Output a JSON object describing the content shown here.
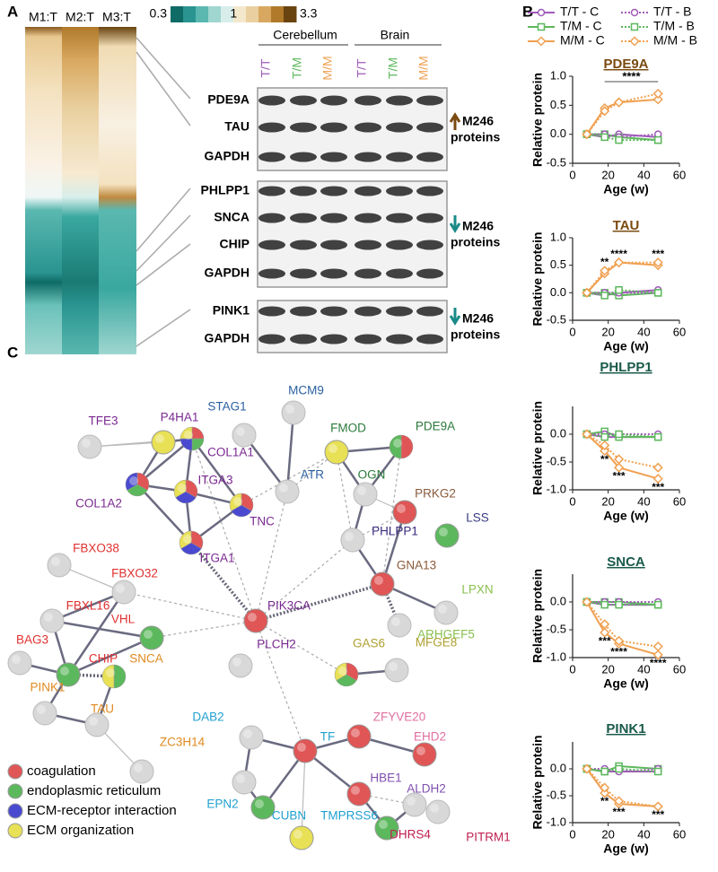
{
  "panels": {
    "a": "A",
    "b": "B",
    "c": "C"
  },
  "heatmap": {
    "columns": [
      "M1:T",
      "M2:T",
      "M3:T"
    ],
    "colorbar": {
      "log": true,
      "colors": [
        "#0f6b66",
        "#2a9490",
        "#5ab8b0",
        "#9fd6d0",
        "#d8eeeb",
        "#f4e8cc",
        "#ead0a0",
        "#d8a860",
        "#b07a2a",
        "#6a4410"
      ],
      "ticks": [
        0.3,
        1,
        3.3
      ]
    }
  },
  "blot": {
    "groups": [
      "Cerebellum",
      "Brain"
    ],
    "lanes": [
      {
        "label": "T/T",
        "color": "#a05ab8"
      },
      {
        "label": "T/M",
        "color": "#5cb85c"
      },
      {
        "label": "M/M",
        "color": "#f0a050"
      }
    ],
    "panels": [
      {
        "rows": [
          "PDE9A",
          "TAU",
          "GAPDH"
        ],
        "note": [
          "M246",
          "proteins"
        ],
        "direction": "up",
        "arrow_color": "#7a4a10"
      },
      {
        "rows": [
          "PHLPP1",
          "SNCA",
          "CHIP",
          "GAPDH"
        ],
        "note": [
          "M246",
          "proteins"
        ],
        "direction": "down",
        "arrow_color": "#1a8a88"
      },
      {
        "rows": [
          "PINK1",
          "GAPDH"
        ],
        "note": [
          "M246",
          "proteins"
        ],
        "direction": "down",
        "arrow_color": "#1a8a88"
      }
    ]
  },
  "chart_data": [
    {
      "type": "line",
      "title": "PDE9A",
      "title_color": "#7a4a10",
      "xlabel": "Age (w)",
      "ylabel": "Relative protein",
      "x": [
        8,
        18,
        26,
        48
      ],
      "xlim": [
        0,
        60
      ],
      "xticks": [
        0,
        20,
        40,
        60
      ],
      "ylim": [
        -0.5,
        1.0
      ],
      "yticks": [
        -0.5,
        {
          "value": 0,
          "label": "0.0"
        },
        0.5,
        {
          "value": 1,
          "label": "1.0"
        }
      ],
      "annotations": [
        "****"
      ],
      "series": [
        {
          "name": "T/T - C",
          "color": "#a05ab8",
          "linestyle": "solid",
          "marker": "circle",
          "values": [
            0,
            -0.05,
            0,
            -0.05
          ]
        },
        {
          "name": "T/M - C",
          "color": "#5cb85c",
          "linestyle": "solid",
          "marker": "square",
          "values": [
            0,
            0,
            -0.05,
            -0.1
          ]
        },
        {
          "name": "M/M - C",
          "color": "#f0a050",
          "linestyle": "solid",
          "marker": "diamond",
          "values": [
            0,
            0.45,
            0.55,
            0.6
          ]
        },
        {
          "name": "T/T - B",
          "color": "#a05ab8",
          "linestyle": "dotted",
          "marker": "circle",
          "values": [
            0,
            0,
            -0.05,
            0
          ]
        },
        {
          "name": "T/M - B",
          "color": "#5cb85c",
          "linestyle": "dotted",
          "marker": "square",
          "values": [
            0,
            -0.05,
            -0.1,
            -0.1
          ]
        },
        {
          "name": "M/M - B",
          "color": "#f0a050",
          "linestyle": "dotted",
          "marker": "diamond",
          "values": [
            0,
            0.4,
            0.55,
            0.7
          ]
        }
      ]
    },
    {
      "type": "line",
      "title": "TAU",
      "title_color": "#7a4a10",
      "xlabel": "Age (w)",
      "ylabel": "Relative protein",
      "x": [
        8,
        18,
        26,
        48
      ],
      "xlim": [
        0,
        60
      ],
      "xticks": [
        0,
        20,
        40,
        60
      ],
      "ylim": [
        -0.5,
        1.0
      ],
      "yticks": [
        -0.5,
        {
          "value": 0,
          "label": "0.0"
        },
        0.5,
        {
          "value": 1,
          "label": "1.0"
        }
      ],
      "annotations": [
        "**",
        "****",
        "***"
      ],
      "series": [
        {
          "name": "T/T - C",
          "color": "#a05ab8",
          "linestyle": "solid",
          "marker": "circle",
          "values": [
            0,
            -0.05,
            0,
            0.05
          ]
        },
        {
          "name": "T/M - C",
          "color": "#5cb85c",
          "linestyle": "solid",
          "marker": "square",
          "values": [
            0,
            0,
            -0.05,
            0
          ]
        },
        {
          "name": "M/M - C",
          "color": "#f0a050",
          "linestyle": "solid",
          "marker": "diamond",
          "values": [
            0,
            0.35,
            0.55,
            0.5
          ]
        },
        {
          "name": "T/T - B",
          "color": "#a05ab8",
          "linestyle": "dotted",
          "marker": "circle",
          "values": [
            0,
            0,
            0,
            0
          ]
        },
        {
          "name": "T/M - B",
          "color": "#5cb85c",
          "linestyle": "dotted",
          "marker": "square",
          "values": [
            0,
            -0.05,
            0.05,
            0
          ]
        },
        {
          "name": "M/M - B",
          "color": "#f0a050",
          "linestyle": "dotted",
          "marker": "diamond",
          "values": [
            0,
            0.4,
            0.55,
            0.55
          ]
        }
      ]
    },
    {
      "type": "line",
      "title": "PHLPP1",
      "title_color": "#1a5a4a",
      "xlabel": "Age (w)",
      "ylabel": "Relative protein",
      "x": [
        8,
        18,
        26,
        48
      ],
      "xlim": [
        0,
        60
      ],
      "xticks": [
        0,
        20,
        40,
        60
      ],
      "ylim": [
        -1.0,
        0.5
      ],
      "yticks": [
        {
          "value": -1,
          "label": "-1.0"
        },
        -0.5,
        {
          "value": 0,
          "label": "0.0"
        }
      ],
      "annotations": [
        "**",
        "***",
        "***"
      ],
      "series": [
        {
          "name": "T/T - C",
          "color": "#a05ab8",
          "linestyle": "solid",
          "marker": "circle",
          "values": [
            0,
            -0.05,
            -0.05,
            -0.05
          ]
        },
        {
          "name": "T/M - C",
          "color": "#5cb85c",
          "linestyle": "solid",
          "marker": "square",
          "values": [
            0,
            0.05,
            -0.05,
            -0.05
          ]
        },
        {
          "name": "M/M - C",
          "color": "#f0a050",
          "linestyle": "solid",
          "marker": "diamond",
          "values": [
            0,
            -0.3,
            -0.6,
            -0.8
          ]
        },
        {
          "name": "T/T - B",
          "color": "#a05ab8",
          "linestyle": "dotted",
          "marker": "circle",
          "values": [
            0,
            0,
            0,
            0
          ]
        },
        {
          "name": "T/M - B",
          "color": "#5cb85c",
          "linestyle": "dotted",
          "marker": "square",
          "values": [
            0,
            -0.05,
            0,
            -0.05
          ]
        },
        {
          "name": "M/M - B",
          "color": "#f0a050",
          "linestyle": "dotted",
          "marker": "diamond",
          "values": [
            0,
            -0.2,
            -0.45,
            -0.6
          ]
        }
      ]
    },
    {
      "type": "line",
      "title": "SNCA",
      "title_color": "#1a5a4a",
      "xlabel": "Age (w)",
      "ylabel": "Relative protein",
      "x": [
        8,
        18,
        26,
        48
      ],
      "xlim": [
        0,
        60
      ],
      "xticks": [
        0,
        20,
        40,
        60
      ],
      "ylim": [
        -1.0,
        0.5
      ],
      "yticks": [
        {
          "value": -1,
          "label": "-1.0"
        },
        -0.5,
        {
          "value": 0,
          "label": "0.0"
        }
      ],
      "annotations": [
        "***",
        "****",
        "****"
      ],
      "series": [
        {
          "name": "T/T - C",
          "color": "#a05ab8",
          "linestyle": "solid",
          "marker": "circle",
          "values": [
            0,
            -0.05,
            -0.05,
            -0.05
          ]
        },
        {
          "name": "T/M - C",
          "color": "#5cb85c",
          "linestyle": "solid",
          "marker": "square",
          "values": [
            0,
            0,
            0,
            -0.05
          ]
        },
        {
          "name": "M/M - C",
          "color": "#f0a050",
          "linestyle": "solid",
          "marker": "diamond",
          "values": [
            0,
            -0.55,
            -0.75,
            -0.95
          ]
        },
        {
          "name": "T/T - B",
          "color": "#a05ab8",
          "linestyle": "dotted",
          "marker": "circle",
          "values": [
            0,
            0,
            0,
            0
          ]
        },
        {
          "name": "T/M - B",
          "color": "#5cb85c",
          "linestyle": "dotted",
          "marker": "square",
          "values": [
            0,
            -0.05,
            -0.05,
            -0.05
          ]
        },
        {
          "name": "M/M - B",
          "color": "#f0a050",
          "linestyle": "dotted",
          "marker": "diamond",
          "values": [
            0,
            -0.4,
            -0.7,
            -0.8
          ]
        }
      ]
    },
    {
      "type": "line",
      "title": "PINK1",
      "title_color": "#1a5a4a",
      "xlabel": "Age (w)",
      "ylabel": "Relative protein",
      "x": [
        8,
        18,
        26,
        48
      ],
      "xlim": [
        0,
        60
      ],
      "xticks": [
        0,
        20,
        40,
        60
      ],
      "ylim": [
        -1.0,
        0.5
      ],
      "yticks": [
        {
          "value": -1,
          "label": "-1.0"
        },
        -0.5,
        {
          "value": 0,
          "label": "0.0"
        }
      ],
      "annotations": [
        "**",
        "***",
        "***"
      ],
      "series": [
        {
          "name": "T/T - C",
          "color": "#a05ab8",
          "linestyle": "solid",
          "marker": "circle",
          "values": [
            0,
            -0.05,
            -0.05,
            -0.05
          ]
        },
        {
          "name": "T/M - C",
          "color": "#5cb85c",
          "linestyle": "solid",
          "marker": "square",
          "values": [
            0,
            -0.05,
            0.05,
            0
          ]
        },
        {
          "name": "M/M - C",
          "color": "#f0a050",
          "linestyle": "solid",
          "marker": "diamond",
          "values": [
            0,
            -0.45,
            -0.65,
            -0.7
          ]
        },
        {
          "name": "T/T - B",
          "color": "#a05ab8",
          "linestyle": "dotted",
          "marker": "circle",
          "values": [
            0,
            0,
            -0.05,
            0
          ]
        },
        {
          "name": "T/M - B",
          "color": "#5cb85c",
          "linestyle": "dotted",
          "marker": "square",
          "values": [
            0,
            -0.05,
            0,
            -0.05
          ]
        },
        {
          "name": "M/M - B",
          "color": "#f0a050",
          "linestyle": "dotted",
          "marker": "diamond",
          "values": [
            0,
            -0.35,
            -0.6,
            -0.7
          ]
        }
      ]
    }
  ],
  "network": {
    "legend": [
      {
        "name": "coagulation",
        "color": "#e05555"
      },
      {
        "name": "endoplasmic reticulum",
        "color": "#5cb85c"
      },
      {
        "name": "ECM-receptor interaction",
        "color": "#4a4ad0"
      },
      {
        "name": "ECM organization",
        "color": "#e8e055"
      }
    ],
    "nodes": [
      {
        "label": "P4HA1",
        "color": "#7a2a90",
        "classes": [
          3
        ]
      },
      {
        "label": "TFE3",
        "color": "#7a2a90",
        "classes": []
      },
      {
        "label": "COL1A1",
        "color": "#7a2a90",
        "classes": [
          0,
          1,
          2,
          3
        ]
      },
      {
        "label": "COL1A2",
        "color": "#7a2a90",
        "classes": [
          0,
          1,
          2
        ]
      },
      {
        "label": "ITGA3",
        "color": "#7a2a90",
        "classes": [
          0,
          2,
          3
        ]
      },
      {
        "label": "TNC",
        "color": "#7a2a90",
        "classes": [
          0,
          2,
          3
        ]
      },
      {
        "label": "ITGA1",
        "color": "#7a2a90",
        "classes": [
          0,
          2,
          3
        ]
      },
      {
        "label": "STAG1",
        "color": "#2a60a0",
        "classes": []
      },
      {
        "label": "MCM9",
        "color": "#2a60a0",
        "classes": []
      },
      {
        "label": "ATR",
        "color": "#2a60a0",
        "classes": []
      },
      {
        "label": "FMOD",
        "color": "#2a7a3a",
        "classes": [
          3
        ]
      },
      {
        "label": "PDE9A",
        "color": "#2a7a3a",
        "classes": [
          0,
          1
        ]
      },
      {
        "label": "OGN",
        "color": "#2a7a3a",
        "classes": []
      },
      {
        "label": "PRKG2",
        "color": "#8a5a3a",
        "classes": [
          0
        ]
      },
      {
        "label": "LSS",
        "color": "#3a3a80",
        "classes": [
          1
        ]
      },
      {
        "label": "PHLPP1",
        "color": "#3a2a80",
        "classes": []
      },
      {
        "label": "GNA13",
        "color": "#8a5a3a",
        "classes": [
          0
        ]
      },
      {
        "label": "LPXN",
        "color": "#8ac050",
        "classes": []
      },
      {
        "label": "ARHGEF5",
        "color": "#8ac050",
        "classes": []
      },
      {
        "label": "FBXO38",
        "color": "#e03030",
        "classes": []
      },
      {
        "label": "FBXO32",
        "color": "#e03030",
        "classes": []
      },
      {
        "label": "FBXL16",
        "color": "#e03030",
        "classes": []
      },
      {
        "label": "VHL",
        "color": "#e03030",
        "classes": [
          1
        ]
      },
      {
        "label": "PIK3CA",
        "color": "#7a2a90",
        "classes": [
          0
        ]
      },
      {
        "label": "BAG3",
        "color": "#e03030",
        "classes": []
      },
      {
        "label": "CHIP",
        "color": "#e03030",
        "classes": [
          1
        ]
      },
      {
        "label": "SNCA",
        "color": "#e08a20",
        "classes": [
          1,
          3
        ]
      },
      {
        "label": "PINK1",
        "color": "#e08a20",
        "classes": []
      },
      {
        "label": "TAU",
        "color": "#e08a20",
        "classes": []
      },
      {
        "label": "PLCH2",
        "color": "#7a2a90",
        "classes": []
      },
      {
        "label": "GAS6",
        "color": "#b0a030",
        "classes": [
          0,
          1,
          3
        ]
      },
      {
        "label": "MFGE8",
        "color": "#b0a030",
        "classes": []
      },
      {
        "label": "ZC3H14",
        "color": "#e08a20",
        "classes": []
      },
      {
        "label": "DAB2",
        "color": "#20a0d0",
        "classes": []
      },
      {
        "label": "TF",
        "color": "#20a0d0",
        "classes": [
          0
        ]
      },
      {
        "label": "ZFYVE20",
        "color": "#e070a0",
        "classes": [
          0
        ]
      },
      {
        "label": "EHD2",
        "color": "#e070a0",
        "classes": [
          0
        ]
      },
      {
        "label": "EPN2",
        "color": "#20a0d0",
        "classes": []
      },
      {
        "label": "CUBN",
        "color": "#20a0d0",
        "classes": [
          1
        ]
      },
      {
        "label": "HBE1",
        "color": "#8050b0",
        "classes": [
          0
        ]
      },
      {
        "label": "ALDH2",
        "color": "#8050b0",
        "classes": []
      },
      {
        "label": "TMPRSS6",
        "color": "#20a0d0",
        "classes": [
          3
        ]
      },
      {
        "label": "DHRS4",
        "color": "#c02050",
        "classes": [
          1
        ]
      },
      {
        "label": "PITRM1",
        "color": "#c02050",
        "classes": []
      }
    ]
  }
}
